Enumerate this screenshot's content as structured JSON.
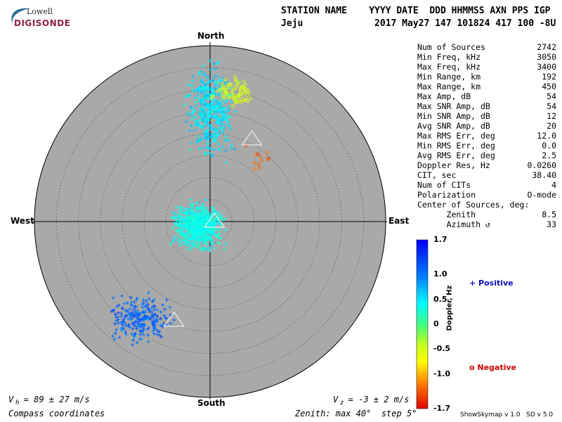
{
  "logo": {
    "line1": "Lowell",
    "line2": "DIGISONDE"
  },
  "header": {
    "labels": "STATION NAME    YYYY DATE  DDD HHMMSS AXN PPS IGP",
    "values": "Jeju             2017 May27 147 101824 417 100 -8U"
  },
  "directions": {
    "north": "North",
    "south": "South",
    "east": "East",
    "west": "West"
  },
  "stats": [
    {
      "label": "Num of Sources",
      "value": "2742"
    },
    {
      "label": "Min Freq, kHz",
      "value": "3050"
    },
    {
      "label": "Max Freq, kHz",
      "value": "3400"
    },
    {
      "label": "Min Range, km",
      "value": "192"
    },
    {
      "label": "Max Range, km",
      "value": "450"
    },
    {
      "label": "Max Amp, dB",
      "value": "54"
    },
    {
      "label": "Max SNR Amp, dB",
      "value": "54"
    },
    {
      "label": "Min SNR Amp, dB",
      "value": "12"
    },
    {
      "label": "Avg SNR Amp, dB",
      "value": "20"
    },
    {
      "label": "Max RMS Err, deg",
      "value": "12.0"
    },
    {
      "label": "Min RMS Err, deg",
      "value": "0.0"
    },
    {
      "label": "Avg RMS Err, deg",
      "value": "2.5"
    },
    {
      "label": "Doppler Res, Hz",
      "value": "0.0260"
    },
    {
      "label": "CIT, sec",
      "value": "38.40"
    },
    {
      "label": "Num of CITs",
      "value": "4"
    },
    {
      "label": "Polarization",
      "value": "O-mode"
    },
    {
      "label": "Center of Sources, deg:",
      "value": ""
    },
    {
      "label": "      Zenith",
      "value": "8.5"
    },
    {
      "label": "      Azimuth ↺",
      "value": "33"
    }
  ],
  "colorbar": {
    "title": "Doppler, Hz",
    "ticks": [
      "1.7",
      "1.0",
      "0.5",
      "0",
      "-0.5",
      "-1.0",
      "-1.7"
    ],
    "range": [
      -1.7,
      1.7
    ]
  },
  "legend": {
    "positive": "+ Positive",
    "negative": "o Negative",
    "positive_color": "#1010c0",
    "negative_color": "#cc0000"
  },
  "footer": {
    "vh": "V  = 89 ± 27 m/s",
    "vh_sub": "h",
    "vz": "V  = -3 ± 2 m/s",
    "vz_sub": "z",
    "coords": "Compass coordinates",
    "zenith": "Zenith: max 40°  step 5°",
    "software": "ShowSkymap v 1.0   SD v 5.0"
  },
  "chart_data": {
    "type": "scatter",
    "projection": "polar sky map, compass coordinates",
    "zenith_max_deg": 40,
    "zenith_step_deg": 5,
    "clusters": [
      {
        "name": "positive-central",
        "marker": "+",
        "center_zenith_deg": 3,
        "center_azimuth_deg": 250,
        "doppler_hz": 0.35
      },
      {
        "name": "positive-north",
        "marker": "+",
        "center_zenith_deg": 25,
        "center_azimuth_deg": 0,
        "doppler_hz": 0.5
      },
      {
        "name": "positive-southwest",
        "marker": "+",
        "center_zenith_deg": 27,
        "center_azimuth_deg": 215,
        "doppler_hz": 1.1
      },
      {
        "name": "negative-north",
        "marker": "o",
        "center_zenith_deg": 30,
        "center_azimuth_deg": 10,
        "doppler_hz": -0.5
      },
      {
        "name": "negative-northeast",
        "marker": "o",
        "center_zenith_deg": 18,
        "center_azimuth_deg": 38,
        "doppler_hz": -1.3
      }
    ],
    "triangles": [
      {
        "zenith_deg": 21,
        "azimuth_deg": 27
      },
      {
        "zenith_deg": 1,
        "azimuth_deg": 90
      },
      {
        "zenith_deg": 24,
        "azimuth_deg": 200
      }
    ],
    "grid": true
  }
}
